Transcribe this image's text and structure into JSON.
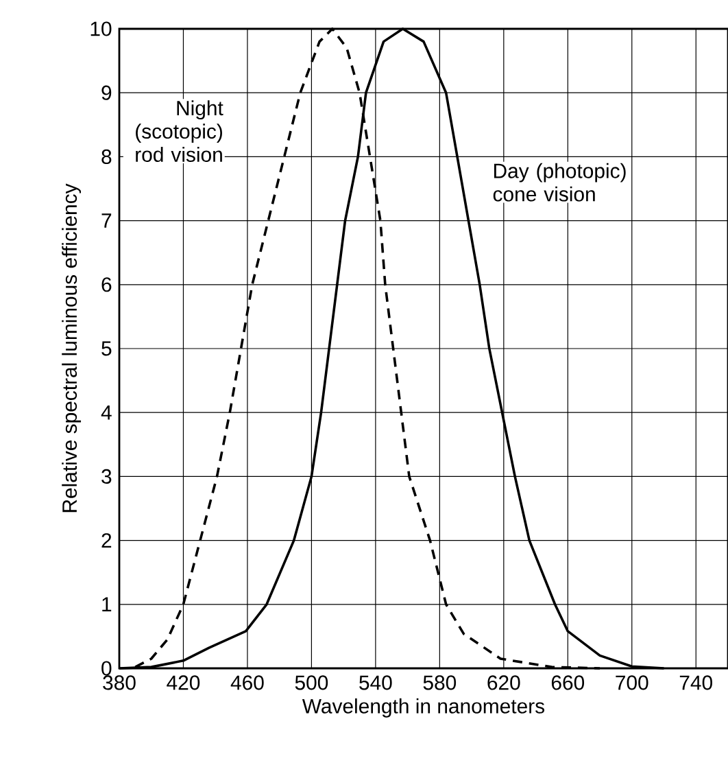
{
  "chart_data": {
    "type": "line",
    "xlabel": "Wavelength in nanometers",
    "ylabel": "Relative spectral luminous efficiency",
    "xlim": [
      380,
      760
    ],
    "ylim": [
      0,
      10
    ],
    "xticks": [
      380,
      420,
      460,
      500,
      540,
      580,
      620,
      660,
      700,
      740
    ],
    "yticks": [
      0,
      1,
      2,
      3,
      4,
      5,
      6,
      7,
      8,
      9,
      10
    ],
    "grid": true,
    "marker": "none",
    "series": [
      {
        "name": "Night (scotopic) rod vision",
        "color": "#000000",
        "line_style": "dashed",
        "x": [
          390,
          400,
          410,
          420,
          441,
          449,
          463,
          473,
          493,
          505,
          513,
          522,
          530,
          543,
          546,
          555,
          561,
          574,
          584,
          595,
          618,
          650,
          680
        ],
        "values": [
          0.02,
          0.15,
          0.45,
          1.0,
          3.0,
          4.0,
          6.0,
          7.0,
          9.0,
          9.8,
          10,
          9.7,
          9.0,
          7.0,
          6.0,
          4.2,
          3.0,
          2.0,
          1.0,
          0.54,
          0.15,
          0.02,
          0
        ]
      },
      {
        "name": "Day (photopic) cone vision",
        "color": "#000000",
        "line_style": "solid",
        "x": [
          380,
          400,
          420,
          436,
          459,
          472,
          489,
          500,
          506,
          516,
          521,
          529,
          534,
          545,
          557,
          570,
          584,
          591,
          598,
          605,
          611,
          619,
          627,
          636,
          652,
          660,
          680,
          700,
          720
        ],
        "values": [
          0,
          0.02,
          0.12,
          0.32,
          0.58,
          1.0,
          2.0,
          3.0,
          4.0,
          6.0,
          7.0,
          8.0,
          9.0,
          9.8,
          10,
          9.8,
          9.0,
          8.0,
          7.0,
          6.0,
          5.0,
          4.0,
          3.0,
          2.0,
          1.0,
          0.58,
          0.2,
          0.03,
          0
        ]
      }
    ]
  }
}
